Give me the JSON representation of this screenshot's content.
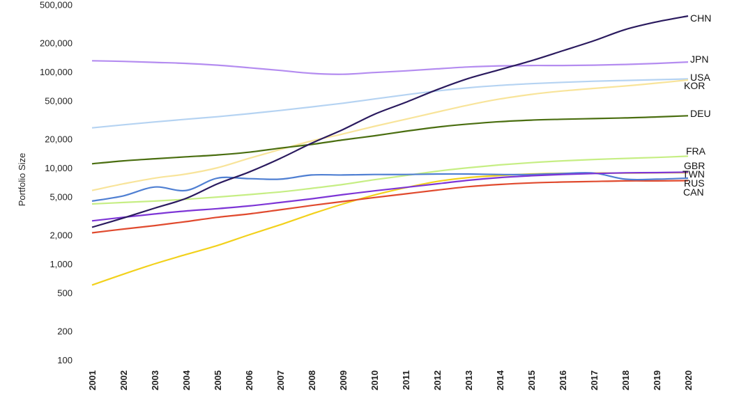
{
  "chart_data": {
    "type": "line",
    "ylabel": "Portfolio Size",
    "yscale": "log",
    "ylim": [
      100,
      500000
    ],
    "y_ticks": [
      100,
      200,
      500,
      1000,
      2000,
      5000,
      10000,
      20000,
      50000,
      100000,
      200000,
      500000
    ],
    "y_tick_labels": [
      "100",
      "200",
      "500",
      "1,000",
      "2,000",
      "5,000",
      "10,000",
      "20,000",
      "50,000",
      "100,000",
      "200,000",
      "500,000"
    ],
    "x": [
      "2001",
      "2002",
      "2003",
      "2004",
      "2005",
      "2006",
      "2007",
      "2008",
      "2009",
      "2010",
      "2011",
      "2012",
      "2013",
      "2014",
      "2015",
      "2016",
      "2017",
      "2018",
      "2019",
      "2020"
    ],
    "grid": false,
    "legend": "inline labels at line ends",
    "series": [
      {
        "name": "CHN",
        "color": "#2a1a5e",
        "values": [
          2400,
          3000,
          3800,
          4800,
          6800,
          9000,
          12500,
          18000,
          25000,
          36000,
          48000,
          65000,
          85000,
          105000,
          130000,
          165000,
          210000,
          275000,
          330000,
          380000
        ]
      },
      {
        "name": "JPN",
        "color": "#b48cf0",
        "values": [
          130000,
          128000,
          125000,
          122000,
          117000,
          110000,
          103000,
          96000,
          94000,
          98000,
          102000,
          107000,
          112000,
          115000,
          116000,
          116000,
          117000,
          119000,
          122000,
          126000
        ]
      },
      {
        "name": "USA",
        "color": "#b5d3f2",
        "values": [
          26000,
          28000,
          30000,
          32000,
          34000,
          36500,
          39500,
          43000,
          47000,
          52000,
          57500,
          63000,
          68000,
          72000,
          75000,
          77500,
          79500,
          81000,
          82500,
          84000
        ]
      },
      {
        "name": "KOR",
        "color": "#f8e49a",
        "values": [
          5800,
          6800,
          7800,
          8600,
          10000,
          12500,
          15500,
          19000,
          22500,
          27000,
          32000,
          38000,
          45000,
          52000,
          58000,
          63000,
          67000,
          71000,
          76000,
          82000
        ]
      },
      {
        "name": "DEU",
        "color": "#4a6e10",
        "values": [
          11000,
          11800,
          12400,
          13000,
          13600,
          14500,
          16000,
          17500,
          19500,
          21500,
          24000,
          26500,
          28500,
          30200,
          31300,
          32000,
          32500,
          33000,
          33800,
          34800
        ]
      },
      {
        "name": "FRA",
        "color": "#c6ee84",
        "values": [
          4200,
          4350,
          4500,
          4700,
          4950,
          5250,
          5600,
          6100,
          6700,
          7500,
          8300,
          9200,
          10000,
          10700,
          11300,
          11800,
          12200,
          12500,
          12800,
          13200
        ]
      },
      {
        "name": "GBR",
        "color": "#4f7fd2",
        "values": [
          4500,
          5100,
          6300,
          5800,
          7800,
          7700,
          7600,
          8400,
          8400,
          8500,
          8500,
          8600,
          8600,
          8500,
          8500,
          8700,
          8800,
          7600,
          7600,
          7800
        ]
      },
      {
        "name": "TWN",
        "color": "#7d35d6",
        "values": [
          2800,
          3050,
          3300,
          3550,
          3750,
          4000,
          4350,
          4750,
          5250,
          5750,
          6250,
          6800,
          7400,
          7900,
          8250,
          8500,
          8700,
          8850,
          8900,
          9000
        ]
      },
      {
        "name": "RUS",
        "color": "#e04a2e",
        "values": [
          2100,
          2300,
          2500,
          2750,
          3050,
          3300,
          3650,
          4050,
          4450,
          4900,
          5350,
          5850,
          6350,
          6700,
          6950,
          7100,
          7200,
          7300,
          7300,
          7350
        ]
      },
      {
        "name": "CAN",
        "color": "#f2d11c",
        "values": [
          600,
          780,
          1000,
          1250,
          1550,
          2000,
          2550,
          3300,
          4200,
          5200,
          6200,
          7200,
          7900,
          8300,
          8600,
          8750,
          8800,
          8800,
          8850,
          8900
        ]
      }
    ]
  }
}
